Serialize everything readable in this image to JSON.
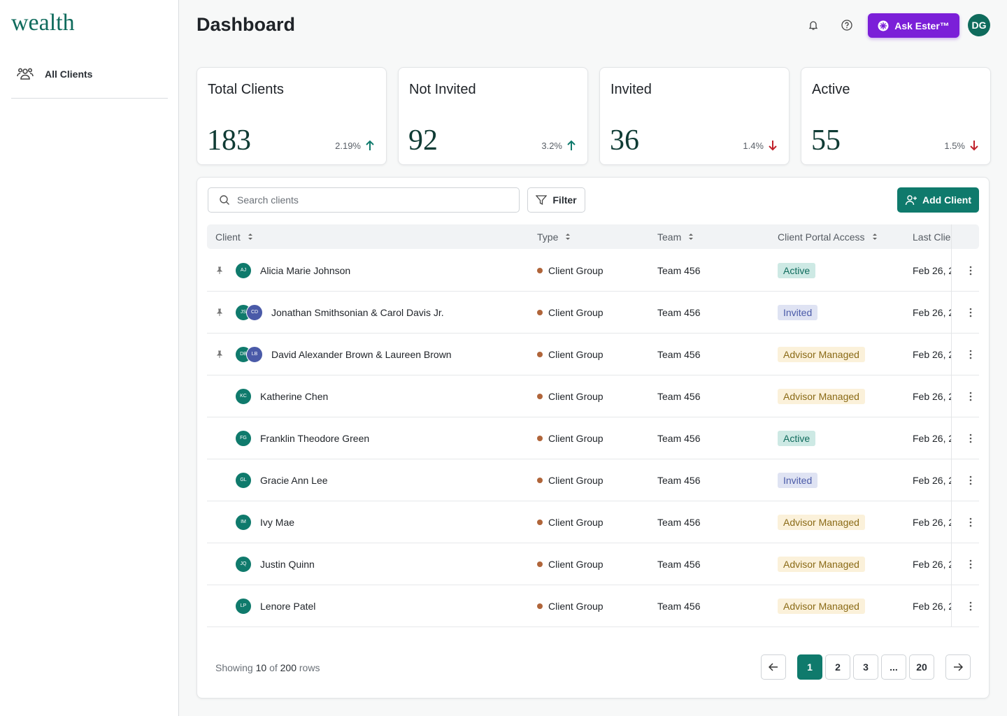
{
  "sidebar": {
    "logo": "wealth",
    "nav": [
      {
        "label": "All Clients"
      }
    ]
  },
  "header": {
    "title": "Dashboard",
    "ask_button": "Ask Ester™",
    "avatar": "DG"
  },
  "stats": [
    {
      "title": "Total Clients",
      "value": 183,
      "change": "2.19%",
      "trend": "up"
    },
    {
      "title": "Not Invited",
      "value": 92,
      "change": "3.2%",
      "trend": "up"
    },
    {
      "title": "Invited",
      "value": 36,
      "change": "1.4%",
      "trend": "down"
    },
    {
      "title": "Active",
      "value": 55,
      "change": "1.5%",
      "trend": "down"
    }
  ],
  "toolbar": {
    "search_placeholder": "Search clients",
    "filter": "Filter",
    "add_client": "Add Client"
  },
  "table": {
    "columns": [
      "Client",
      "Type",
      "Team",
      "Client Portal Access",
      "Last Clie"
    ],
    "rows": [
      {
        "pinned": true,
        "avatars": [
          "AJ"
        ],
        "name": "Alicia Marie Johnson",
        "type": "Client Group",
        "team": "Team 456",
        "access": "Active",
        "last": "Feb 26, 2"
      },
      {
        "pinned": true,
        "avatars": [
          "JS",
          "CD"
        ],
        "name": "Jonathan Smithsonian & Carol Davis Jr.",
        "type": "Client Group",
        "team": "Team 456",
        "access": "Invited",
        "last": "Feb 26, 2"
      },
      {
        "pinned": true,
        "avatars": [
          "DB",
          "LB"
        ],
        "name": "David Alexander Brown & Laureen Brown",
        "type": "Client Group",
        "team": "Team 456",
        "access": "Advisor Managed",
        "last": "Feb 26, 2"
      },
      {
        "pinned": false,
        "avatars": [
          "KC"
        ],
        "name": "Katherine Chen",
        "type": "Client Group",
        "team": "Team 456",
        "access": "Advisor Managed",
        "last": "Feb 26, 2"
      },
      {
        "pinned": false,
        "avatars": [
          "FG"
        ],
        "name": "Franklin Theodore Green",
        "type": "Client Group",
        "team": "Team 456",
        "access": "Active",
        "last": "Feb 26, 2"
      },
      {
        "pinned": false,
        "avatars": [
          "GL"
        ],
        "name": "Gracie Ann Lee",
        "type": "Client Group",
        "team": "Team 456",
        "access": "Invited",
        "last": "Feb 26, 2"
      },
      {
        "pinned": false,
        "avatars": [
          "IM"
        ],
        "name": "Ivy Mae",
        "type": "Client Group",
        "team": "Team 456",
        "access": "Advisor Managed",
        "last": "Feb 26, 2"
      },
      {
        "pinned": false,
        "avatars": [
          "JQ"
        ],
        "name": "Justin Quinn",
        "type": "Client Group",
        "team": "Team 456",
        "access": "Advisor Managed",
        "last": "Feb 26, 2"
      },
      {
        "pinned": false,
        "avatars": [
          "LP"
        ],
        "name": "Lenore Patel",
        "type": "Client Group",
        "team": "Team 456",
        "access": "Advisor Managed",
        "last": "Feb 26, 2"
      }
    ]
  },
  "footer": {
    "showing": "Showing",
    "shown": 10,
    "of": "of",
    "total": 200,
    "rows": "rows"
  },
  "pagination": {
    "pages": [
      "1",
      "2",
      "3",
      "...",
      "20"
    ],
    "current": 0
  }
}
